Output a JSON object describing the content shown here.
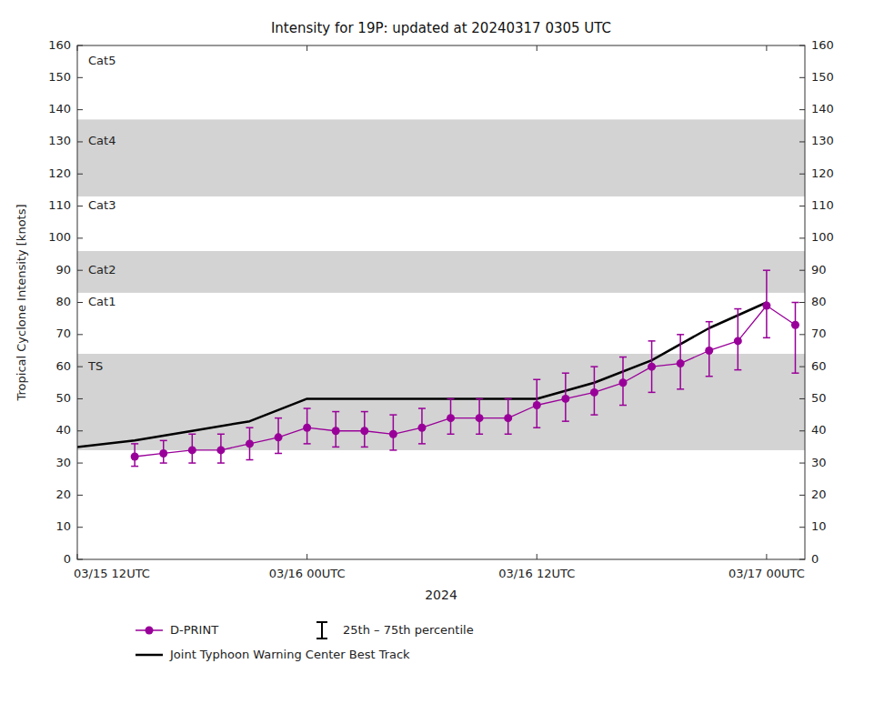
{
  "chart_data": {
    "type": "line",
    "title": "Intensity for 19P: updated at 20240317 0305 UTC",
    "ylabel": "Tropical Cyclone Intensity [knots]",
    "xlabel": "2024",
    "xlim": [
      0,
      38
    ],
    "xticks": [
      {
        "value": 0,
        "label": "03/15 12UTC"
      },
      {
        "value": 12,
        "label": "03/16 00UTC"
      },
      {
        "value": 24,
        "label": "03/16 12UTC"
      },
      {
        "value": 36,
        "label": "03/17 00UTC"
      }
    ],
    "ylim": [
      0,
      160
    ],
    "yticks": [
      0,
      10,
      20,
      30,
      40,
      50,
      60,
      70,
      80,
      90,
      100,
      110,
      120,
      130,
      140,
      150,
      160
    ],
    "y2lim": [
      0,
      160
    ],
    "y2ticks": [
      0,
      10,
      20,
      30,
      40,
      50,
      60,
      70,
      80,
      90,
      100,
      110,
      120,
      130,
      140,
      150,
      160
    ],
    "grid": false,
    "legend": "bottom",
    "bg_color": "#ffffff",
    "bands": [
      {
        "ymin": 34,
        "ymax": 64,
        "color": "#d3d3d3"
      },
      {
        "ymin": 64,
        "ymax": 83,
        "color": "#ffffff"
      },
      {
        "ymin": 83,
        "ymax": 96,
        "color": "#d3d3d3"
      },
      {
        "ymin": 96,
        "ymax": 113,
        "color": "#ffffff"
      },
      {
        "ymin": 113,
        "ymax": 137,
        "color": "#d3d3d3"
      },
      {
        "ymin": 137,
        "ymax": 160,
        "color": "#ffffff"
      }
    ],
    "annotations": [
      {
        "text": "TS",
        "y": 60
      },
      {
        "text": "Cat1",
        "y": 80
      },
      {
        "text": "Cat2",
        "y": 90
      },
      {
        "text": "Cat3",
        "y": 110
      },
      {
        "text": "Cat4",
        "y": 130
      },
      {
        "text": "Cat5",
        "y": 155
      }
    ],
    "error_bar_label": "25th – 75th percentile",
    "error_bar_color": "#000000",
    "series": [
      {
        "name": "D-PRINT",
        "color": "#990099",
        "marker": "circle",
        "line_style": "solid",
        "x": [
          3,
          4.5,
          6,
          7.5,
          9,
          10.5,
          12,
          13.5,
          15,
          16.5,
          18,
          19.5,
          21,
          22.5,
          24,
          25.5,
          27,
          28.5,
          30,
          31.5,
          33,
          34.5,
          36,
          37.5
        ],
        "values": [
          32,
          33,
          34,
          34,
          36,
          38,
          41,
          40,
          40,
          39,
          41,
          44,
          44,
          44,
          48,
          50,
          52,
          55,
          60,
          61,
          65,
          68,
          79,
          73
        ],
        "lower": [
          29,
          30,
          30,
          30,
          31,
          33,
          36,
          35,
          35,
          34,
          36,
          39,
          39,
          39,
          41,
          43,
          45,
          48,
          52,
          53,
          57,
          59,
          69,
          58
        ],
        "upper": [
          36,
          37,
          39,
          39,
          41,
          44,
          47,
          46,
          46,
          45,
          47,
          50,
          50,
          50,
          56,
          58,
          60,
          63,
          68,
          70,
          74,
          78,
          90,
          80
        ]
      },
      {
        "name": "Joint Typhoon Warning Center Best Track",
        "color": "#000000",
        "marker": "none",
        "line_style": "solid",
        "x": [
          0,
          3,
          6,
          9,
          12,
          15,
          18,
          21,
          24,
          27,
          30,
          33,
          36
        ],
        "values": [
          35,
          37,
          40,
          43,
          50,
          50,
          50,
          50,
          50,
          55,
          62,
          72,
          80
        ]
      }
    ]
  }
}
